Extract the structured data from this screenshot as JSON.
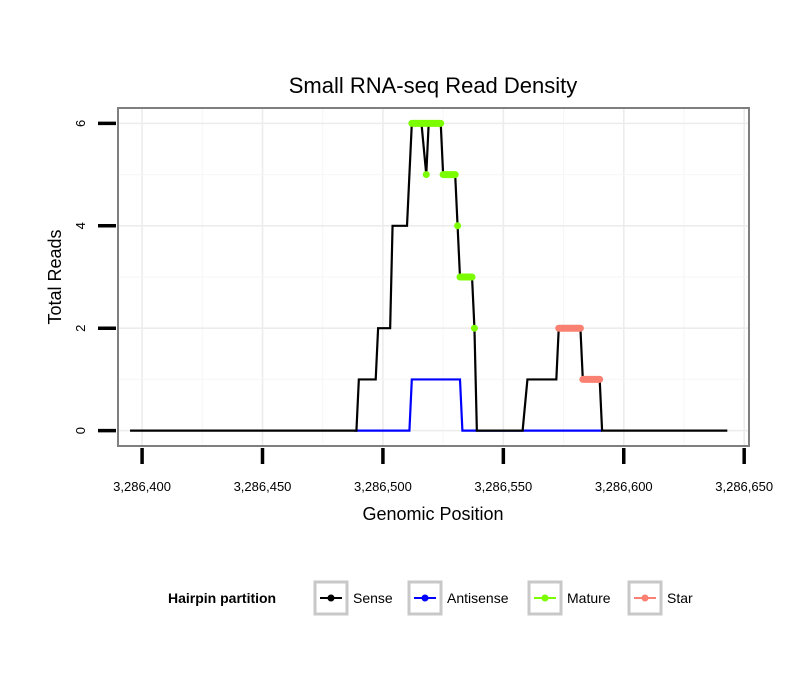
{
  "chart_data": {
    "type": "line",
    "title": "Small RNA-seq Read Density",
    "xlabel": "Genomic Position",
    "ylabel": "Total Reads",
    "xlim": [
      3286390,
      3286652
    ],
    "ylim": [
      -0.3,
      6.3
    ],
    "x_ticks": [
      3286400,
      3286450,
      3286500,
      3286550,
      3286600,
      3286650
    ],
    "x_tick_labels": [
      "3,286,400",
      "3,286,450",
      "3,286,500",
      "3,286,550",
      "3,286,600",
      "3,286,650"
    ],
    "y_ticks": [
      0,
      2,
      4,
      6
    ],
    "y_tick_labels": [
      "0",
      "2",
      "4",
      "6"
    ],
    "legend": {
      "title": "Hairpin partition",
      "position": "bottom",
      "entries": [
        {
          "name": "Sense",
          "color": "#000000"
        },
        {
          "name": "Antisense",
          "color": "#0000ff"
        },
        {
          "name": "Mature",
          "color": "#7cfc00"
        },
        {
          "name": "Star",
          "color": "#fa8072"
        }
      ]
    },
    "series": [
      {
        "name": "Sense",
        "color": "#000000",
        "points": [
          [
            3286395,
            0
          ],
          [
            3286489,
            0
          ],
          [
            3286490,
            1
          ],
          [
            3286497,
            1
          ],
          [
            3286498,
            2
          ],
          [
            3286503,
            2
          ],
          [
            3286504,
            4
          ],
          [
            3286510,
            4
          ],
          [
            3286512,
            6
          ],
          [
            3286516,
            6
          ],
          [
            3286518,
            5
          ],
          [
            3286519,
            6
          ],
          [
            3286524,
            6
          ],
          [
            3286525,
            5
          ],
          [
            3286530,
            5
          ],
          [
            3286531,
            4
          ],
          [
            3286532,
            3
          ],
          [
            3286537,
            3
          ],
          [
            3286538,
            2
          ],
          [
            3286539,
            0
          ],
          [
            3286558,
            0
          ],
          [
            3286560,
            1
          ],
          [
            3286572,
            1
          ],
          [
            3286573,
            2
          ],
          [
            3286582,
            2
          ],
          [
            3286583,
            1
          ],
          [
            3286590,
            1
          ],
          [
            3286591,
            0
          ],
          [
            3286643,
            0
          ]
        ]
      },
      {
        "name": "Antisense",
        "color": "#0000ff",
        "points": [
          [
            3286488,
            0
          ],
          [
            3286511,
            0
          ],
          [
            3286512,
            1
          ],
          [
            3286532,
            1
          ],
          [
            3286533,
            0
          ],
          [
            3286591,
            0
          ]
        ]
      },
      {
        "name": "Mature",
        "color": "#7cfc00",
        "segments": [
          {
            "x": [
              3286512,
              3286524
            ],
            "y": 6
          },
          {
            "x": [
              3286518,
              3286518
            ],
            "y": 5
          },
          {
            "x": [
              3286525,
              3286530
            ],
            "y": 5
          },
          {
            "x": [
              3286531,
              3286531
            ],
            "y": 4
          },
          {
            "x": [
              3286532,
              3286537
            ],
            "y": 3
          },
          {
            "x": [
              3286538,
              3286538
            ],
            "y": 2
          }
        ]
      },
      {
        "name": "Star",
        "color": "#fa8072",
        "segments": [
          {
            "x": [
              3286573,
              3286582
            ],
            "y": 2
          },
          {
            "x": [
              3286583,
              3286590
            ],
            "y": 1
          }
        ]
      }
    ]
  }
}
